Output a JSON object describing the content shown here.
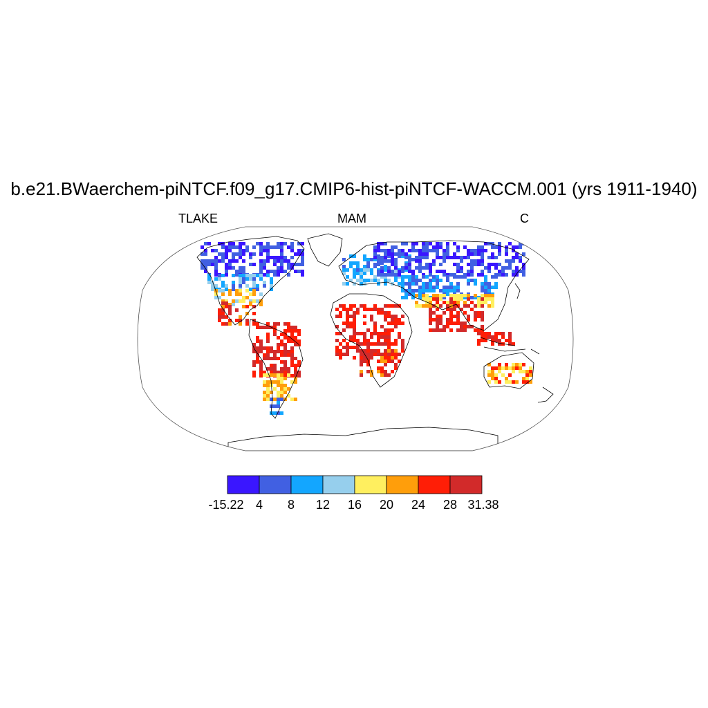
{
  "title": "b.e21.BWaerchem-piNTCF.f09_g17.CMIP6-hist-piNTCF-WACCM.001 (yrs 1911-1940)",
  "subtitle_left": "TLAKE",
  "subtitle_center": "MAM",
  "subtitle_right": "C",
  "colorbar": {
    "colors": [
      "#3a16ff",
      "#4160e2",
      "#13a6ff",
      "#96cfed",
      "#ffef5f",
      "#ff9e0b",
      "#ff1e06",
      "#d22a2a"
    ],
    "labels": [
      "-15.22",
      "4",
      "8",
      "12",
      "16",
      "20",
      "24",
      "28",
      "31.38"
    ]
  },
  "map": {
    "projection": "Robinson",
    "variable": "TLAKE",
    "units": "C"
  }
}
